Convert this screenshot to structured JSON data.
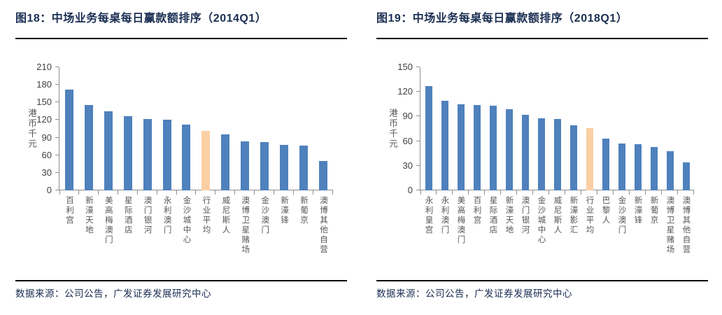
{
  "footer": {
    "source": "数据来源：公司公告，广发证券发展研究中心"
  },
  "colors": {
    "bar": "#4f81bd",
    "bar_highlight": "#fbcfa4",
    "title": "#1a2e52",
    "source": "#1a2e52",
    "axis": "#8f8f8f",
    "tick_label": "#3f3f3f",
    "category_label": "#555555",
    "divider": "#000000"
  },
  "chart_data": [
    {
      "type": "bar",
      "title": "图18：中场业务每桌每日赢款额排序（2014Q1）",
      "ylabel": "港币千元",
      "xlabel": "",
      "ylim": [
        0,
        210
      ],
      "yticks": [
        0,
        30,
        60,
        90,
        120,
        150,
        180,
        210
      ],
      "grid": false,
      "legend": "none",
      "highlight_category": "行业平均",
      "categories": [
        "百利宫",
        "新濠天地",
        "美高梅澳门",
        "星际酒店",
        "澳门银河",
        "永利澳门",
        "金沙城中心",
        "行业平均",
        "威尼斯人",
        "澳博卫星赌场",
        "金沙澳门",
        "新濠锋",
        "新葡京",
        "澳博其他自营"
      ],
      "values": [
        172,
        145,
        135,
        127,
        122,
        121,
        112,
        101,
        96,
        84,
        82,
        77,
        76,
        50
      ]
    },
    {
      "type": "bar",
      "title": "图19：中场业务每桌每日赢款额排序（2018Q1）",
      "ylabel": "港币千元",
      "xlabel": "",
      "ylim": [
        0,
        150
      ],
      "yticks": [
        0,
        30,
        60,
        90,
        120,
        150
      ],
      "grid": false,
      "legend": "none",
      "highlight_category": "行业平均",
      "categories": [
        "永利皇宫",
        "永利澳门",
        "美高梅澳门",
        "百利宫",
        "星际酒店",
        "新濠天地",
        "澳门银河",
        "金沙城中心",
        "威尼斯人",
        "新濠影汇",
        "行业平均",
        "巴黎人",
        "金沙澳门",
        "新濠锋",
        "新葡京",
        "澳博卫星赌场",
        "澳博其他自营"
      ],
      "values": [
        127,
        109,
        105,
        104,
        103,
        99,
        92,
        88,
        87,
        79,
        76,
        63,
        57,
        56,
        53,
        48,
        34
      ]
    }
  ]
}
